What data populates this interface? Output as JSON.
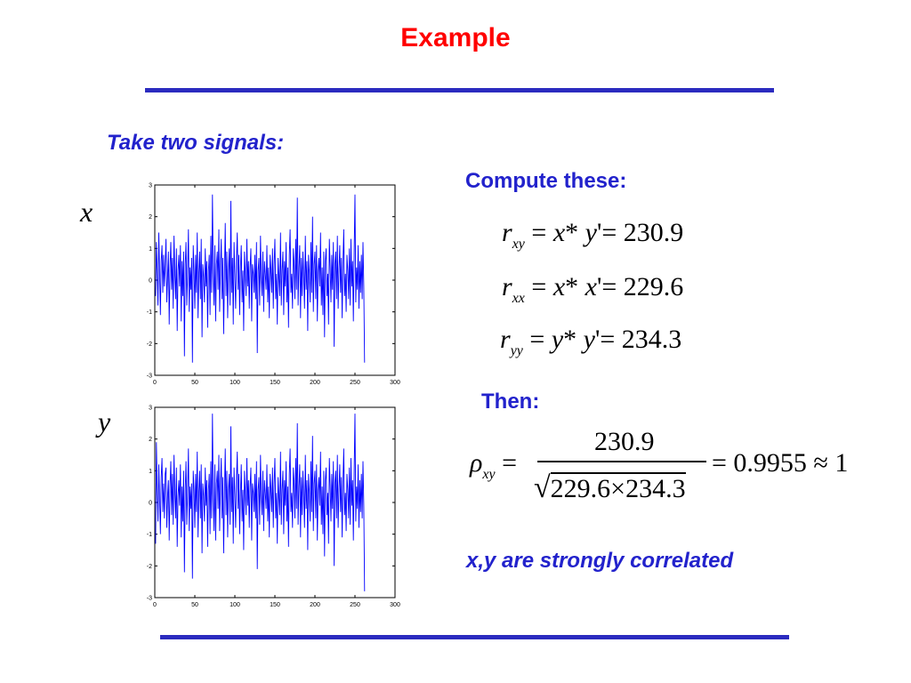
{
  "slide": {
    "title": "Example",
    "intro": "Take two signals:",
    "compute_label": "Compute these:",
    "then_label": "Then:",
    "conclusion": "x,y are strongly correlated",
    "var_x": "x",
    "var_y": "y"
  },
  "formulas": {
    "rxy": {
      "lhs": "r",
      "sub": "xy",
      "a": "x",
      "b": "y",
      "result": "230.9"
    },
    "rxx": {
      "lhs": "r",
      "sub": "xx",
      "a": "x",
      "b": "x",
      "result": "229.6"
    },
    "ryy": {
      "lhs": "r",
      "sub": "yy",
      "a": "y",
      "b": "y",
      "result": "234.3"
    },
    "rho": {
      "sub": "xy",
      "numerator": "230.9",
      "den_a": "229.6",
      "den_b": "234.3",
      "result": "0.9955",
      "approx": "1"
    }
  },
  "colors": {
    "title": "#ff0000",
    "accent": "#2222cc",
    "rule": "#2b2bbf",
    "series": "#0000ff"
  },
  "chart_data": [
    {
      "type": "line",
      "title": "",
      "xlabel": "",
      "ylabel": "",
      "xlim": [
        0,
        300
      ],
      "ylim": [
        -3,
        3
      ],
      "xticks": [
        0,
        50,
        100,
        150,
        200,
        250,
        300
      ],
      "yticks": [
        3,
        2,
        1,
        0,
        -1,
        -2,
        -3
      ],
      "grid": false,
      "series": [
        {
          "color": "#0000ff",
          "x_start": 1,
          "x_step": 1,
          "values": [
            -0.5,
            1.2,
            0.3,
            -0.8,
            1.5,
            0.2,
            -1.1,
            0.6,
            1.1,
            -0.4,
            0.8,
            -0.2,
            0.5,
            1.3,
            -0.7,
            0.1,
            0.9,
            -1.4,
            0.4,
            1.2,
            -0.3,
            0.7,
            -0.9,
            1.4,
            0.2,
            -0.6,
            1.0,
            -1.6,
            0.3,
            0.8,
            -0.2,
            1.1,
            -1.3,
            0.6,
            -0.5,
            0.9,
            -2.4,
            0.5,
            1.2,
            -0.8,
            0.2,
            1.6,
            -1.0,
            0.4,
            -0.3,
            0.7,
            -2.6,
            1.1,
            0.3,
            -0.9,
            0.8,
            -0.4,
            1.5,
            -1.2,
            0.2,
            0.9,
            -0.6,
            1.3,
            -1.8,
            0.5,
            0.1,
            -0.7,
            1.0,
            -0.2,
            0.6,
            -1.5,
            0.3,
            0.8,
            -1.1,
            1.4,
            -0.4,
            2.7,
            0.2,
            -0.8,
            1.1,
            -1.3,
            0.5,
            0.9,
            -0.3,
            1.6,
            -1.0,
            0.4,
            1.3,
            -0.6,
            0.7,
            -1.7,
            0.2,
            1.8,
            -0.5,
            0.9,
            -1.2,
            0.3,
            1.0,
            -0.8,
            2.5,
            -0.4,
            0.7,
            -1.4,
            1.2,
            0.1,
            -0.9,
            0.6,
            1.5,
            -0.3,
            0.8,
            -1.1,
            0.4,
            1.1,
            -0.7,
            0.3,
            -1.6,
            0.9,
            0.2,
            -0.5,
            1.3,
            -0.2,
            0.6,
            -0.9,
            0.4,
            1.0,
            -1.3,
            0.5,
            0.2,
            -0.4,
            0.8,
            -0.6,
            1.2,
            -2.3,
            0.3,
            0.7,
            -0.8,
            1.4,
            0.1,
            -0.5,
            0.9,
            -1.0,
            0.6,
            0.2,
            -0.3,
            1.1,
            -0.7,
            0.4,
            -1.2,
            0.8,
            0.3,
            -0.4,
            1.0,
            -0.9,
            0.5,
            1.3,
            -0.6,
            0.2,
            -1.4,
            0.7,
            0.1,
            -0.5,
            1.5,
            -0.8,
            0.3,
            0.9,
            -1.1,
            0.6,
            -0.2,
            1.2,
            -0.7,
            0.4,
            -1.5,
            0.8,
            1.6,
            -0.4,
            0.2,
            -0.9,
            1.0,
            0.5,
            -0.6,
            1.3,
            -0.3,
            2.6,
            -0.8,
            0.4,
            1.1,
            -1.2,
            0.7,
            -0.5,
            0.9,
            0.1,
            -0.9,
            1.4,
            -0.3,
            0.6,
            -1.6,
            0.8,
            0.2,
            -0.7,
            1.2,
            -0.4,
            2.0,
            -1.0,
            0.5,
            0.9,
            -0.6,
            1.1,
            -1.3,
            0.3,
            0.7,
            -0.2,
            1.5,
            -0.8,
            0.4,
            -1.1,
            0.9,
            -1.8,
            0.6,
            1.0,
            -0.5,
            0.2,
            -1.4,
            1.3,
            0.4,
            -0.7,
            0.8,
            -0.3,
            1.2,
            -2.1,
            0.5,
            0.9,
            -0.6,
            1.4,
            -0.9,
            0.3,
            1.1,
            -0.4,
            0.7,
            -1.2,
            0.5,
            1.6,
            -0.5,
            0.2,
            -1.0,
            0.8,
            0.3,
            -0.6,
            1.0,
            -0.8,
            1.3,
            -0.2,
            0.6,
            -1.3,
            0.9,
            2.7,
            -0.7,
            0.4,
            -0.3,
            1.1,
            -0.9,
            0.6,
            -0.4,
            0.8,
            -0.6,
            1.2,
            -0.2,
            -2.6
          ]
        }
      ]
    },
    {
      "type": "line",
      "title": "",
      "xlabel": "",
      "ylabel": "",
      "xlim": [
        0,
        300
      ],
      "ylim": [
        -3,
        3
      ],
      "xticks": [
        0,
        50,
        100,
        150,
        200,
        250,
        300
      ],
      "yticks": [
        3,
        2,
        1,
        0,
        -1,
        -2,
        -3
      ],
      "grid": false,
      "series": [
        {
          "color": "#0000ff",
          "x_start": 1,
          "x_step": 1,
          "values": [
            -1.3,
            1.9,
            0.4,
            -0.6,
            1.2,
            0.1,
            -1.0,
            0.8,
            1.4,
            -0.3,
            0.6,
            -0.5,
            0.9,
            1.1,
            -0.8,
            0.2,
            0.7,
            -1.2,
            0.5,
            1.3,
            -0.4,
            0.9,
            -0.7,
            1.5,
            0.3,
            -0.5,
            1.1,
            -1.4,
            0.2,
            0.7,
            -0.1,
            1.2,
            -1.1,
            0.5,
            -0.6,
            1.0,
            -2.2,
            0.4,
            1.3,
            -0.7,
            0.3,
            1.7,
            -0.9,
            0.5,
            -0.2,
            0.6,
            -2.4,
            1.0,
            0.4,
            -0.8,
            0.9,
            -0.3,
            1.6,
            -1.1,
            0.3,
            1.0,
            -0.5,
            1.2,
            -1.6,
            0.6,
            0.2,
            -0.6,
            1.1,
            -0.1,
            0.7,
            -1.4,
            0.4,
            0.9,
            -1.0,
            1.3,
            -0.5,
            2.8,
            0.1,
            -0.9,
            1.2,
            -1.2,
            0.6,
            1.0,
            -0.2,
            1.5,
            -0.9,
            0.5,
            1.4,
            -0.5,
            0.8,
            -1.6,
            0.3,
            1.7,
            -0.4,
            1.0,
            -1.1,
            0.4,
            0.9,
            -0.7,
            2.4,
            -0.3,
            0.8,
            -1.3,
            1.1,
            0.2,
            -0.8,
            0.7,
            1.6,
            -0.2,
            0.9,
            -1.0,
            0.3,
            1.2,
            -0.6,
            0.4,
            -1.5,
            1.0,
            0.3,
            -0.4,
            1.4,
            -0.1,
            0.7,
            -0.8,
            0.5,
            1.1,
            -1.2,
            0.6,
            0.3,
            -0.3,
            0.9,
            -0.5,
            1.3,
            -2.1,
            0.4,
            0.8,
            -0.7,
            1.5,
            0.2,
            -0.4,
            1.0,
            -0.9,
            0.7,
            0.3,
            -0.2,
            1.2,
            -0.6,
            0.5,
            -1.1,
            0.9,
            0.4,
            -0.3,
            1.1,
            -0.8,
            0.6,
            1.4,
            -0.5,
            0.3,
            -1.3,
            0.8,
            0.2,
            -0.4,
            1.6,
            -0.7,
            0.4,
            1.0,
            -1.0,
            0.7,
            -0.1,
            1.3,
            -0.6,
            0.5,
            -1.4,
            0.9,
            1.7,
            -0.3,
            0.3,
            -0.8,
            1.1,
            0.6,
            -0.5,
            1.4,
            -0.2,
            2.5,
            -0.7,
            0.5,
            1.2,
            -1.1,
            0.8,
            -0.4,
            1.0,
            0.2,
            -0.8,
            1.5,
            -0.2,
            0.7,
            -1.5,
            0.9,
            0.3,
            -0.6,
            1.3,
            -0.3,
            2.1,
            -0.9,
            0.6,
            1.0,
            -0.5,
            1.2,
            -1.2,
            0.4,
            0.8,
            -0.1,
            1.6,
            -0.7,
            0.5,
            -1.0,
            1.0,
            -1.7,
            0.7,
            1.1,
            -0.4,
            0.3,
            -1.3,
            1.4,
            0.5,
            -0.6,
            0.9,
            -0.2,
            1.3,
            -2.0,
            0.6,
            1.0,
            -0.5,
            1.5,
            -0.8,
            0.4,
            1.2,
            -0.3,
            0.8,
            -1.1,
            0.6,
            1.7,
            -0.4,
            0.3,
            -0.9,
            0.9,
            0.4,
            -0.5,
            1.1,
            -0.7,
            1.4,
            -0.1,
            0.7,
            -1.2,
            1.0,
            2.8,
            -0.6,
            0.5,
            -0.2,
            1.2,
            -0.8,
            0.7,
            -0.3,
            0.9,
            -0.5,
            1.3,
            -0.1,
            -2.8
          ]
        }
      ]
    }
  ]
}
